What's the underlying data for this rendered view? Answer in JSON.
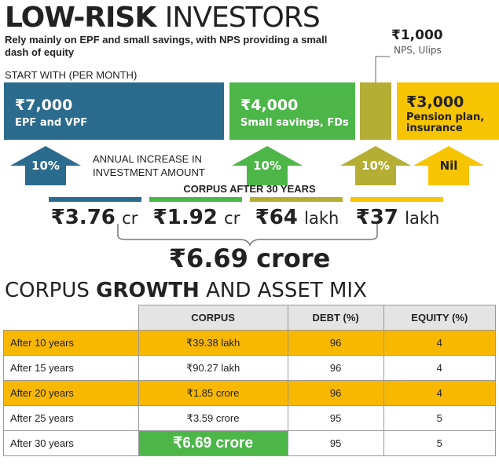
{
  "header": {
    "title_bold": "LOW-RISK",
    "title_rest": "INVESTORS",
    "subtitle": "Rely mainly on EPF and small savings, with NPS providing a small dash of equity"
  },
  "start_label": "START WITH (PER MONTH)",
  "investments": [
    {
      "amount": "₹7,000",
      "label": "EPF and VPF",
      "increase": "10%",
      "corpus": "₹3.76",
      "unit": "cr",
      "color": "#2b6b8e"
    },
    {
      "amount": "₹4,000",
      "label": "Small savings, FDs",
      "increase": "10%",
      "corpus": "₹1.92",
      "unit": "cr",
      "color": "#4db649"
    },
    {
      "amount": "₹1,000",
      "label": "NPS, Ulips",
      "increase": "10%",
      "corpus": "₹64",
      "unit": "lakh",
      "color": "#b4ae34"
    },
    {
      "amount": "₹3,000",
      "label": "Pension plan, insurance",
      "increase": "Nil",
      "corpus": "₹37",
      "unit": "lakh",
      "color": "#f6c400"
    }
  ],
  "increase_label": "ANNUAL INCREASE IN INVESTMENT AMOUNT",
  "corpus_label": "CORPUS AFTER 30 YEARS",
  "total": {
    "amount": "₹6.69",
    "unit": "crore"
  },
  "table": {
    "title_start": "CORPUS",
    "title_bold": "GROWTH",
    "title_end": "AND ASSET MIX",
    "columns": [
      "CORPUS",
      "DEBT (%)",
      "EQUITY (%)"
    ],
    "rows": [
      [
        "After 10 years",
        "₹39.38 lakh",
        96,
        4
      ],
      [
        "After 15 years",
        "₹90.27 lakh",
        96,
        4
      ],
      [
        "After 20 years",
        "₹1.85 crore",
        96,
        4
      ],
      [
        "After 25 years",
        "₹3.59 crore",
        95,
        5
      ],
      [
        "After 30 years",
        "₹6.69 crore",
        95,
        5
      ]
    ]
  }
}
